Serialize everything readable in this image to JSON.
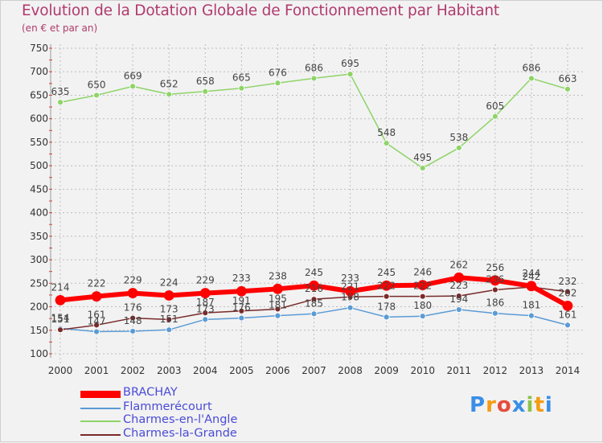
{
  "title": "Evolution de la Dotation Globale de Fonctionnement par Habitant",
  "subtitle": "(en € et par an)",
  "logo_text": "Proxiti",
  "colors": {
    "title": "#b03a6d",
    "grid": "#bdbdbd",
    "BRACHAY": "#ff0000",
    "Flammerécourt": "#5b9bd5",
    "Charmes-en-l'Angle": "#8ed468",
    "Charmes-la-Grande": "#7a2a2a"
  },
  "chart_data": {
    "type": "line",
    "title": "Evolution de la Dotation Globale de Fonctionnement par Habitant",
    "subtitle": "(en € et par an)",
    "xlabel": "",
    "ylabel": "",
    "ylim": [
      100,
      750
    ],
    "yticks": [
      100,
      150,
      200,
      250,
      300,
      350,
      400,
      450,
      500,
      550,
      600,
      650,
      700,
      750
    ],
    "grid": true,
    "legend_position": "bottom-left",
    "categories": [
      "2000",
      "2001",
      "2002",
      "2003",
      "2004",
      "2005",
      "2006",
      "2007",
      "2008",
      "2009",
      "2010",
      "2011",
      "2012",
      "2013",
      "2014"
    ],
    "series": [
      {
        "name": "BRACHAY",
        "values": [
          214,
          222,
          229,
          224,
          229,
          233,
          238,
          245,
          233,
          245,
          246,
          262,
          256,
          244,
          202
        ]
      },
      {
        "name": "Flammerécourt",
        "values": [
          154,
          147,
          148,
          151,
          173,
          176,
          181,
          185,
          198,
          178,
          180,
          194,
          186,
          181,
          161
        ]
      },
      {
        "name": "Charmes-en-l'Angle",
        "values": [
          635,
          650,
          669,
          652,
          658,
          665,
          676,
          686,
          695,
          548,
          495,
          538,
          605,
          686,
          663
        ]
      },
      {
        "name": "Charmes-la-Grande",
        "values": [
          151,
          161,
          176,
          173,
          187,
          191,
          195,
          216,
          221,
          222,
          222,
          223,
          236,
          242,
          232
        ]
      }
    ]
  }
}
